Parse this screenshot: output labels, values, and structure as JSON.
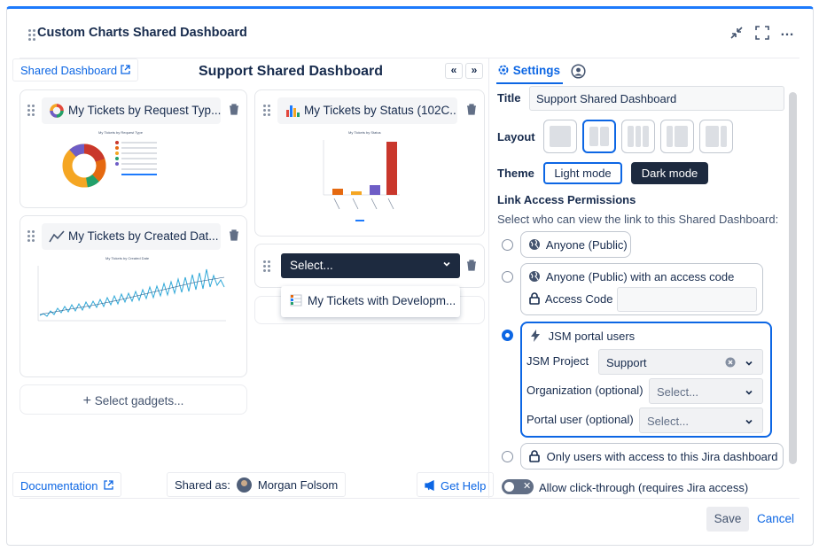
{
  "app": {
    "title": "Custom Charts Shared Dashboard"
  },
  "left": {
    "shared_dashboard_link": "Shared Dashboard",
    "dashboard_title": "Support Shared Dashboard",
    "nav_prev": "«",
    "nav_next": "»",
    "gadgets": [
      {
        "title": "My Tickets by Request Typ...",
        "chart_title": "My Tickets by Request Type"
      },
      {
        "title": "My Tickets by Status (102C...",
        "chart_title": "My Tickets by Status"
      },
      {
        "title": "My Tickets by Created Dat...",
        "chart_title": "My Tickets by Created Date"
      }
    ],
    "select_placeholder": "Select...",
    "dropdown_option": "My Tickets with Developm...",
    "select_gadgets": "Select gadgets...",
    "documentation": "Documentation",
    "shared_as_label": "Shared as:",
    "shared_as_user": "Morgan Folsom",
    "get_help": "Get Help"
  },
  "settings": {
    "tab_settings": "Settings",
    "title_label": "Title",
    "title_value": "Support Shared Dashboard",
    "layout_label": "Layout",
    "theme_label": "Theme",
    "theme_light": "Light mode",
    "theme_dark": "Dark mode",
    "permissions_heading": "Link Access Permissions",
    "permissions_desc": "Select who can view the link to this Shared Dashboard:",
    "opt_public": "Anyone (Public)",
    "opt_public_code": "Anyone (Public) with an access code",
    "access_code_label": "Access Code",
    "opt_jsm": "JSM portal users",
    "jsm_project_label": "JSM Project",
    "jsm_project_value": "Support",
    "org_label": "Organization (optional)",
    "org_placeholder": "Select...",
    "portal_user_label": "Portal user (optional)",
    "portal_user_placeholder": "Select...",
    "opt_jira": "Only users with access to this Jira dashboard",
    "click_through": "Allow click-through (requires Jira access)"
  },
  "footer": {
    "save": "Save",
    "cancel": "Cancel"
  },
  "colors": {
    "accent": "#0c66e4",
    "dark_button": "#1d2a3f"
  }
}
